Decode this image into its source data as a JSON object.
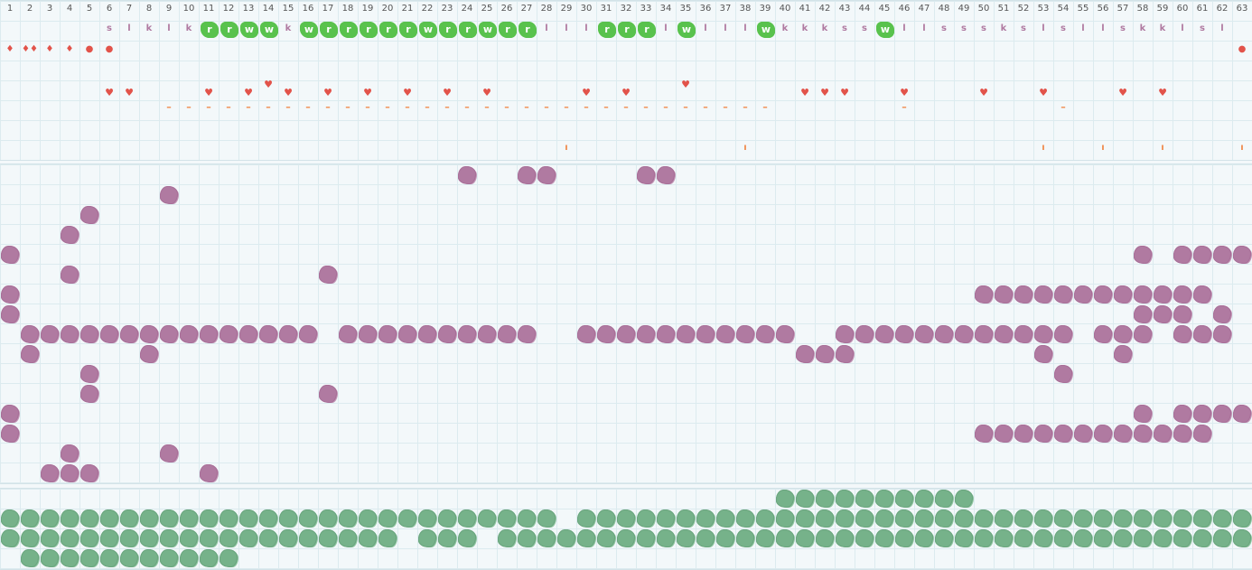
{
  "columns": [
    "1",
    "2",
    "3",
    "4",
    "5",
    "6",
    "7",
    "8",
    "9",
    "10",
    "11",
    "12",
    "13",
    "14",
    "15",
    "16",
    "17",
    "18",
    "19",
    "20",
    "21",
    "22",
    "23",
    "24",
    "25",
    "26",
    "27",
    "28",
    "29",
    "30",
    "31",
    "32",
    "33",
    "34",
    "35",
    "36",
    "37",
    "38",
    "39",
    "40",
    "41",
    "42",
    "43",
    "44",
    "45",
    "46",
    "47",
    "48",
    "49",
    "50",
    "51",
    "52",
    "53",
    "54",
    "55",
    "56",
    "57",
    "58",
    "59",
    "60",
    "61",
    "62",
    "63"
  ],
  "letter_row": [
    {
      "col": 6,
      "text": "s",
      "style": "plain"
    },
    {
      "col": 7,
      "text": "l",
      "style": "plain"
    },
    {
      "col": 8,
      "text": "k",
      "style": "plain"
    },
    {
      "col": 9,
      "text": "l",
      "style": "plain"
    },
    {
      "col": 10,
      "text": "k",
      "style": "plain"
    },
    {
      "col": 11,
      "text": "r",
      "style": "badge"
    },
    {
      "col": 12,
      "text": "r",
      "style": "badge"
    },
    {
      "col": 13,
      "text": "w",
      "style": "badge"
    },
    {
      "col": 14,
      "text": "w",
      "style": "badge"
    },
    {
      "col": 15,
      "text": "k",
      "style": "plain"
    },
    {
      "col": 16,
      "text": "w",
      "style": "badge"
    },
    {
      "col": 17,
      "text": "r",
      "style": "badge"
    },
    {
      "col": 18,
      "text": "r",
      "style": "badge"
    },
    {
      "col": 19,
      "text": "r",
      "style": "badge"
    },
    {
      "col": 20,
      "text": "r",
      "style": "badge"
    },
    {
      "col": 21,
      "text": "r",
      "style": "badge"
    },
    {
      "col": 22,
      "text": "w",
      "style": "badge"
    },
    {
      "col": 23,
      "text": "r",
      "style": "badge"
    },
    {
      "col": 24,
      "text": "r",
      "style": "badge"
    },
    {
      "col": 25,
      "text": "w",
      "style": "badge"
    },
    {
      "col": 26,
      "text": "r",
      "style": "badge"
    },
    {
      "col": 27,
      "text": "r",
      "style": "badge"
    },
    {
      "col": 28,
      "text": "l",
      "style": "plain"
    },
    {
      "col": 29,
      "text": "l",
      "style": "plain"
    },
    {
      "col": 30,
      "text": "l",
      "style": "plain"
    },
    {
      "col": 31,
      "text": "r",
      "style": "badge"
    },
    {
      "col": 32,
      "text": "r",
      "style": "badge"
    },
    {
      "col": 33,
      "text": "r",
      "style": "badge"
    },
    {
      "col": 34,
      "text": "l",
      "style": "plain"
    },
    {
      "col": 35,
      "text": "w",
      "style": "badge"
    },
    {
      "col": 36,
      "text": "l",
      "style": "plain"
    },
    {
      "col": 37,
      "text": "l",
      "style": "plain"
    },
    {
      "col": 38,
      "text": "l",
      "style": "plain"
    },
    {
      "col": 39,
      "text": "w",
      "style": "badge"
    },
    {
      "col": 40,
      "text": "k",
      "style": "plain"
    },
    {
      "col": 41,
      "text": "k",
      "style": "plain"
    },
    {
      "col": 42,
      "text": "k",
      "style": "plain"
    },
    {
      "col": 43,
      "text": "s",
      "style": "plain"
    },
    {
      "col": 44,
      "text": "s",
      "style": "plain"
    },
    {
      "col": 45,
      "text": "w",
      "style": "badge"
    },
    {
      "col": 46,
      "text": "l",
      "style": "plain"
    },
    {
      "col": 47,
      "text": "l",
      "style": "plain"
    },
    {
      "col": 48,
      "text": "s",
      "style": "plain"
    },
    {
      "col": 49,
      "text": "s",
      "style": "plain"
    },
    {
      "col": 50,
      "text": "s",
      "style": "plain"
    },
    {
      "col": 51,
      "text": "k",
      "style": "plain"
    },
    {
      "col": 52,
      "text": "s",
      "style": "plain"
    },
    {
      "col": 53,
      "text": "l",
      "style": "plain"
    },
    {
      "col": 54,
      "text": "s",
      "style": "plain"
    },
    {
      "col": 55,
      "text": "l",
      "style": "plain"
    },
    {
      "col": 56,
      "text": "l",
      "style": "plain"
    },
    {
      "col": 57,
      "text": "s",
      "style": "plain"
    },
    {
      "col": 58,
      "text": "k",
      "style": "plain"
    },
    {
      "col": 59,
      "text": "k",
      "style": "plain"
    },
    {
      "col": 60,
      "text": "l",
      "style": "plain"
    },
    {
      "col": 61,
      "text": "s",
      "style": "plain"
    },
    {
      "col": 62,
      "text": "l",
      "style": "plain"
    }
  ],
  "marker_row": [
    {
      "col": 1,
      "text": "♦"
    },
    {
      "col": 2,
      "text": "♦♦"
    },
    {
      "col": 3,
      "text": "♦"
    },
    {
      "col": 4,
      "text": "♦"
    },
    {
      "col": 5,
      "text": "●"
    },
    {
      "col": 6,
      "text": "●"
    },
    {
      "col": 63,
      "text": "●"
    }
  ],
  "heart_row": [
    {
      "col": 14,
      "text": "♥",
      "row": 0
    },
    {
      "col": 35,
      "text": "♥",
      "row": 0
    },
    {
      "col": 6,
      "text": "♥",
      "row": 1
    },
    {
      "col": 7,
      "text": "♥",
      "row": 1
    },
    {
      "col": 11,
      "text": "♥",
      "row": 1
    },
    {
      "col": 13,
      "text": "♥",
      "row": 1
    },
    {
      "col": 15,
      "text": "♥",
      "row": 1
    },
    {
      "col": 17,
      "text": "♥",
      "row": 1
    },
    {
      "col": 19,
      "text": "♥",
      "row": 1
    },
    {
      "col": 21,
      "text": "♥",
      "row": 1
    },
    {
      "col": 23,
      "text": "♥",
      "row": 1
    },
    {
      "col": 25,
      "text": "♥",
      "row": 1
    },
    {
      "col": 30,
      "text": "♥",
      "row": 1
    },
    {
      "col": 32,
      "text": "♥",
      "row": 1
    },
    {
      "col": 41,
      "text": "♥",
      "row": 1
    },
    {
      "col": 42,
      "text": "♥",
      "row": 1
    },
    {
      "col": 43,
      "text": "♥",
      "row": 1
    },
    {
      "col": 46,
      "text": "♥",
      "row": 1
    },
    {
      "col": 50,
      "text": "♥",
      "row": 1
    },
    {
      "col": 53,
      "text": "♥",
      "row": 1
    },
    {
      "col": 57,
      "text": "♥",
      "row": 1
    },
    {
      "col": 59,
      "text": "♥",
      "row": 1
    }
  ],
  "dash_cols": [
    9,
    10,
    11,
    12,
    13,
    14,
    15,
    16,
    17,
    18,
    19,
    20,
    21,
    22,
    23,
    24,
    25,
    26,
    27,
    28,
    29,
    30,
    31,
    32,
    33,
    34,
    35,
    36,
    37,
    38,
    39,
    46,
    54
  ],
  "tick_cols": [
    29,
    38,
    53,
    56,
    59,
    63
  ],
  "purple_cells": [
    [
      9,
      24
    ],
    [
      9,
      27
    ],
    [
      9,
      28
    ],
    [
      9,
      33
    ],
    [
      9,
      34
    ],
    [
      10,
      9
    ],
    [
      11,
      5
    ],
    [
      12,
      4
    ],
    [
      13,
      1
    ],
    [
      13,
      58
    ],
    [
      13,
      60
    ],
    [
      13,
      61
    ],
    [
      13,
      62
    ],
    [
      13,
      63
    ],
    [
      14,
      4
    ],
    [
      14,
      17
    ],
    [
      15,
      1
    ],
    [
      15,
      50
    ],
    [
      15,
      51
    ],
    [
      15,
      52
    ],
    [
      15,
      53
    ],
    [
      15,
      54
    ],
    [
      15,
      55
    ],
    [
      15,
      56
    ],
    [
      15,
      57
    ],
    [
      15,
      58
    ],
    [
      15,
      59
    ],
    [
      15,
      60
    ],
    [
      15,
      61
    ],
    [
      16,
      1
    ],
    [
      16,
      58
    ],
    [
      16,
      59
    ],
    [
      16,
      60
    ],
    [
      16,
      62
    ],
    [
      17,
      2
    ],
    [
      17,
      3
    ],
    [
      17,
      4
    ],
    [
      17,
      5
    ],
    [
      17,
      6
    ],
    [
      17,
      7
    ],
    [
      17,
      8
    ],
    [
      17,
      9
    ],
    [
      17,
      10
    ],
    [
      17,
      11
    ],
    [
      17,
      12
    ],
    [
      17,
      13
    ],
    [
      17,
      14
    ],
    [
      17,
      15
    ],
    [
      17,
      16
    ],
    [
      17,
      18
    ],
    [
      17,
      19
    ],
    [
      17,
      20
    ],
    [
      17,
      21
    ],
    [
      17,
      22
    ],
    [
      17,
      23
    ],
    [
      17,
      24
    ],
    [
      17,
      25
    ],
    [
      17,
      26
    ],
    [
      17,
      27
    ],
    [
      17,
      30
    ],
    [
      17,
      31
    ],
    [
      17,
      32
    ],
    [
      17,
      33
    ],
    [
      17,
      34
    ],
    [
      17,
      35
    ],
    [
      17,
      36
    ],
    [
      17,
      37
    ],
    [
      17,
      38
    ],
    [
      17,
      39
    ],
    [
      17,
      40
    ],
    [
      17,
      43
    ],
    [
      17,
      44
    ],
    [
      17,
      45
    ],
    [
      17,
      46
    ],
    [
      17,
      47
    ],
    [
      17,
      48
    ],
    [
      17,
      49
    ],
    [
      17,
      50
    ],
    [
      17,
      51
    ],
    [
      17,
      52
    ],
    [
      17,
      53
    ],
    [
      17,
      54
    ],
    [
      17,
      56
    ],
    [
      17,
      57
    ],
    [
      17,
      58
    ],
    [
      17,
      60
    ],
    [
      17,
      61
    ],
    [
      17,
      62
    ],
    [
      18,
      2
    ],
    [
      18,
      8
    ],
    [
      18,
      41
    ],
    [
      18,
      42
    ],
    [
      18,
      43
    ],
    [
      18,
      53
    ],
    [
      18,
      57
    ],
    [
      19,
      5
    ],
    [
      19,
      54
    ],
    [
      20,
      5
    ],
    [
      20,
      17
    ],
    [
      21,
      1
    ],
    [
      21,
      58
    ],
    [
      21,
      60
    ],
    [
      21,
      61
    ],
    [
      21,
      62
    ],
    [
      21,
      63
    ],
    [
      22,
      1
    ],
    [
      22,
      50
    ],
    [
      22,
      51
    ],
    [
      22,
      52
    ],
    [
      22,
      53
    ],
    [
      22,
      54
    ],
    [
      22,
      55
    ],
    [
      22,
      56
    ],
    [
      22,
      57
    ],
    [
      22,
      58
    ],
    [
      22,
      59
    ],
    [
      22,
      60
    ],
    [
      22,
      61
    ],
    [
      23,
      4
    ],
    [
      23,
      9
    ],
    [
      24,
      3
    ],
    [
      24,
      4
    ],
    [
      24,
      5
    ],
    [
      24,
      11
    ]
  ],
  "green_cells": [
    [
      25,
      40
    ],
    [
      25,
      41
    ],
    [
      25,
      42
    ],
    [
      25,
      43
    ],
    [
      25,
      44
    ],
    [
      25,
      45
    ],
    [
      25,
      46
    ],
    [
      25,
      47
    ],
    [
      25,
      48
    ],
    [
      25,
      49
    ],
    [
      26,
      1
    ],
    [
      26,
      2
    ],
    [
      26,
      3
    ],
    [
      26,
      4
    ],
    [
      26,
      5
    ],
    [
      26,
      6
    ],
    [
      26,
      7
    ],
    [
      26,
      8
    ],
    [
      26,
      9
    ],
    [
      26,
      10
    ],
    [
      26,
      11
    ],
    [
      26,
      12
    ],
    [
      26,
      13
    ],
    [
      26,
      14
    ],
    [
      26,
      15
    ],
    [
      26,
      16
    ],
    [
      26,
      17
    ],
    [
      26,
      18
    ],
    [
      26,
      19
    ],
    [
      26,
      20
    ],
    [
      26,
      21
    ],
    [
      26,
      22
    ],
    [
      26,
      23
    ],
    [
      26,
      24
    ],
    [
      26,
      25
    ],
    [
      26,
      26
    ],
    [
      26,
      27
    ],
    [
      26,
      28
    ],
    [
      26,
      30
    ],
    [
      26,
      31
    ],
    [
      26,
      32
    ],
    [
      26,
      33
    ],
    [
      26,
      34
    ],
    [
      26,
      35
    ],
    [
      26,
      36
    ],
    [
      26,
      37
    ],
    [
      26,
      38
    ],
    [
      26,
      39
    ],
    [
      26,
      40
    ],
    [
      26,
      41
    ],
    [
      26,
      42
    ],
    [
      26,
      43
    ],
    [
      26,
      44
    ],
    [
      26,
      45
    ],
    [
      26,
      46
    ],
    [
      26,
      47
    ],
    [
      26,
      48
    ],
    [
      26,
      49
    ],
    [
      26,
      50
    ],
    [
      26,
      51
    ],
    [
      26,
      52
    ],
    [
      26,
      53
    ],
    [
      26,
      54
    ],
    [
      26,
      55
    ],
    [
      26,
      56
    ],
    [
      26,
      57
    ],
    [
      26,
      58
    ],
    [
      26,
      59
    ],
    [
      26,
      60
    ],
    [
      26,
      61
    ],
    [
      26,
      62
    ],
    [
      26,
      63
    ],
    [
      27,
      1
    ],
    [
      27,
      2
    ],
    [
      27,
      3
    ],
    [
      27,
      4
    ],
    [
      27,
      5
    ],
    [
      27,
      6
    ],
    [
      27,
      7
    ],
    [
      27,
      8
    ],
    [
      27,
      9
    ],
    [
      27,
      10
    ],
    [
      27,
      11
    ],
    [
      27,
      12
    ],
    [
      27,
      13
    ],
    [
      27,
      14
    ],
    [
      27,
      15
    ],
    [
      27,
      16
    ],
    [
      27,
      17
    ],
    [
      27,
      18
    ],
    [
      27,
      19
    ],
    [
      27,
      20
    ],
    [
      27,
      22
    ],
    [
      27,
      23
    ],
    [
      27,
      24
    ],
    [
      27,
      26
    ],
    [
      27,
      27
    ],
    [
      27,
      28
    ],
    [
      27,
      29
    ],
    [
      27,
      30
    ],
    [
      27,
      31
    ],
    [
      27,
      32
    ],
    [
      27,
      33
    ],
    [
      27,
      34
    ],
    [
      27,
      35
    ],
    [
      27,
      36
    ],
    [
      27,
      37
    ],
    [
      27,
      38
    ],
    [
      27,
      39
    ],
    [
      27,
      40
    ],
    [
      27,
      41
    ],
    [
      27,
      42
    ],
    [
      27,
      43
    ],
    [
      27,
      44
    ],
    [
      27,
      45
    ],
    [
      27,
      46
    ],
    [
      27,
      47
    ],
    [
      27,
      48
    ],
    [
      27,
      49
    ],
    [
      27,
      50
    ],
    [
      27,
      51
    ],
    [
      27,
      52
    ],
    [
      27,
      53
    ],
    [
      27,
      54
    ],
    [
      27,
      55
    ],
    [
      27,
      56
    ],
    [
      27,
      57
    ],
    [
      27,
      58
    ],
    [
      27,
      59
    ],
    [
      27,
      60
    ],
    [
      27,
      61
    ],
    [
      27,
      62
    ],
    [
      27,
      63
    ],
    [
      28,
      2
    ],
    [
      28,
      3
    ],
    [
      28,
      4
    ],
    [
      28,
      5
    ],
    [
      28,
      6
    ],
    [
      28,
      7
    ],
    [
      28,
      8
    ],
    [
      28,
      9
    ],
    [
      28,
      10
    ],
    [
      28,
      11
    ],
    [
      28,
      12
    ]
  ],
  "colors": {
    "purple_note": "#b07aa1",
    "green_note": "#76b28a",
    "badge_green": "#59c24d",
    "marker_red": "#e2534a",
    "dash_orange": "#f08a4b",
    "grid_line": "#dcebef",
    "background": "#f3f8fa"
  }
}
